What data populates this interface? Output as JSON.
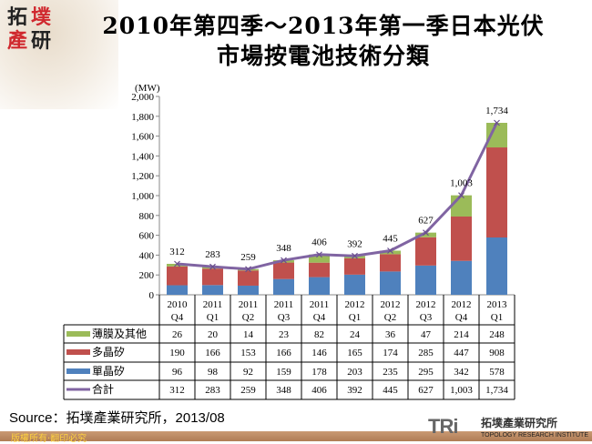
{
  "logo": {
    "chars": [
      "拓",
      "墣",
      "產",
      "研"
    ]
  },
  "title": {
    "line1": "2010年第四季～2013年第一季日本光伏",
    "line2": "市場按電池技術分類"
  },
  "chart_data": {
    "type": "bar",
    "stacked": true,
    "unit_label": "(MW)",
    "ylim": [
      0,
      2000
    ],
    "yticks": [
      "0",
      "200",
      "400",
      "600",
      "800",
      "1,000",
      "1,200",
      "1,400",
      "1,600",
      "1,800",
      "2,000"
    ],
    "grid": false,
    "categories": [
      [
        "2010",
        "Q4"
      ],
      [
        "2011",
        "Q1"
      ],
      [
        "2011",
        "Q2"
      ],
      [
        "2011",
        "Q3"
      ],
      [
        "2011",
        "Q4"
      ],
      [
        "2012",
        "Q1"
      ],
      [
        "2012",
        "Q2"
      ],
      [
        "2012",
        "Q3"
      ],
      [
        "2012",
        "Q4"
      ],
      [
        "2013",
        "Q1"
      ]
    ],
    "series": [
      {
        "name": "單晶矽",
        "type": "bar",
        "color": "#4f81bd",
        "values": [
          96,
          98,
          92,
          159,
          178,
          203,
          235,
          295,
          342,
          578
        ],
        "labels": [
          "96",
          "98",
          "92",
          "159",
          "178",
          "203",
          "235",
          "295",
          "342",
          "578"
        ]
      },
      {
        "name": "多晶矽",
        "type": "bar",
        "color": "#c0504d",
        "values": [
          190,
          166,
          153,
          166,
          146,
          165,
          174,
          285,
          447,
          908
        ],
        "labels": [
          "190",
          "166",
          "153",
          "166",
          "146",
          "165",
          "174",
          "285",
          "447",
          "908"
        ]
      },
      {
        "name": "薄膜及其他",
        "type": "bar",
        "color": "#9bbb59",
        "values": [
          26,
          20,
          14,
          23,
          82,
          24,
          36,
          47,
          214,
          248
        ],
        "labels": [
          "26",
          "20",
          "14",
          "23",
          "82",
          "24",
          "36",
          "47",
          "214",
          "248"
        ]
      },
      {
        "name": "合計",
        "type": "line",
        "color": "#8064a2",
        "values": [
          312,
          283,
          259,
          348,
          406,
          392,
          445,
          627,
          1003,
          1734
        ],
        "labels": [
          "312",
          "283",
          "259",
          "348",
          "406",
          "392",
          "445",
          "627",
          "1,003",
          "1,734"
        ]
      }
    ],
    "table_row_order": [
      2,
      1,
      0,
      3
    ],
    "legend": "data-table"
  },
  "source": "Source：拓墣產業研究所，2013/08",
  "footer": "版權所有‧翻印必究",
  "brand": {
    "mark": "TRi",
    "cn": "拓墣產業研究所",
    "en": "TOPOLOGY RESEARCH INSTITUTE"
  }
}
